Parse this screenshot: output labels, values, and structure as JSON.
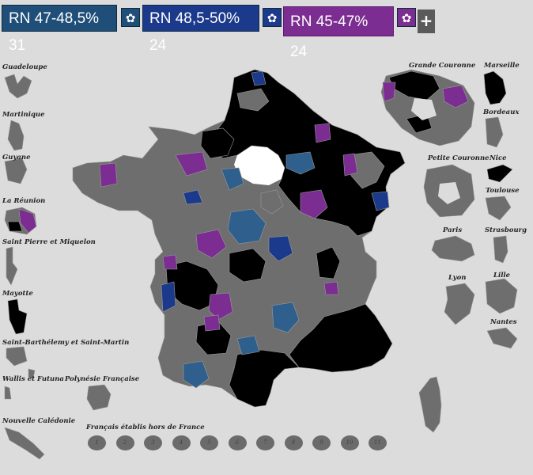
{
  "legend": {
    "items": [
      {
        "label": "RN 47-48,5% 31",
        "color": "#1f4e79"
      },
      {
        "label": "RN 48,5-50% 24",
        "color": "#1b3a8c"
      },
      {
        "label": "RN 45-47% 24",
        "color": "#7b2d91"
      }
    ],
    "gear_icon": "gear-icon",
    "add_icon": "plus-icon",
    "add_label": "+"
  },
  "colors": {
    "background": "#dcdcdc",
    "other": "#6e6e6e",
    "rn_high": "#000000",
    "rn_47_48": "#2f5f8c",
    "rn_48_50": "#1b3a8c",
    "rn_45_47": "#7b2d91",
    "border": "#9a9a9a"
  },
  "insets_left": [
    "Guadeloupe",
    "Martinique",
    "Guyane",
    "La Réunion",
    "Saint Pierre et Miquelon",
    "Mayotte",
    "Saint-Barthélemy et Saint-Martin",
    "Wallis et Futuna",
    "Polynésie Française",
    "Nouvelle Calédonie"
  ],
  "insets_right": [
    "Grande Couronne",
    "Marseille",
    "Bordeaux",
    "Petite Couronne",
    "Nice",
    "Toulouse",
    "Paris",
    "Strasbourg",
    "Lyon",
    "Lille",
    "Nantes"
  ],
  "abroad": {
    "title": "Français établis hors de France",
    "circles": [
      "1",
      "2",
      "3",
      "4",
      "5",
      "6",
      "7",
      "8",
      "9",
      "10",
      "11"
    ]
  }
}
